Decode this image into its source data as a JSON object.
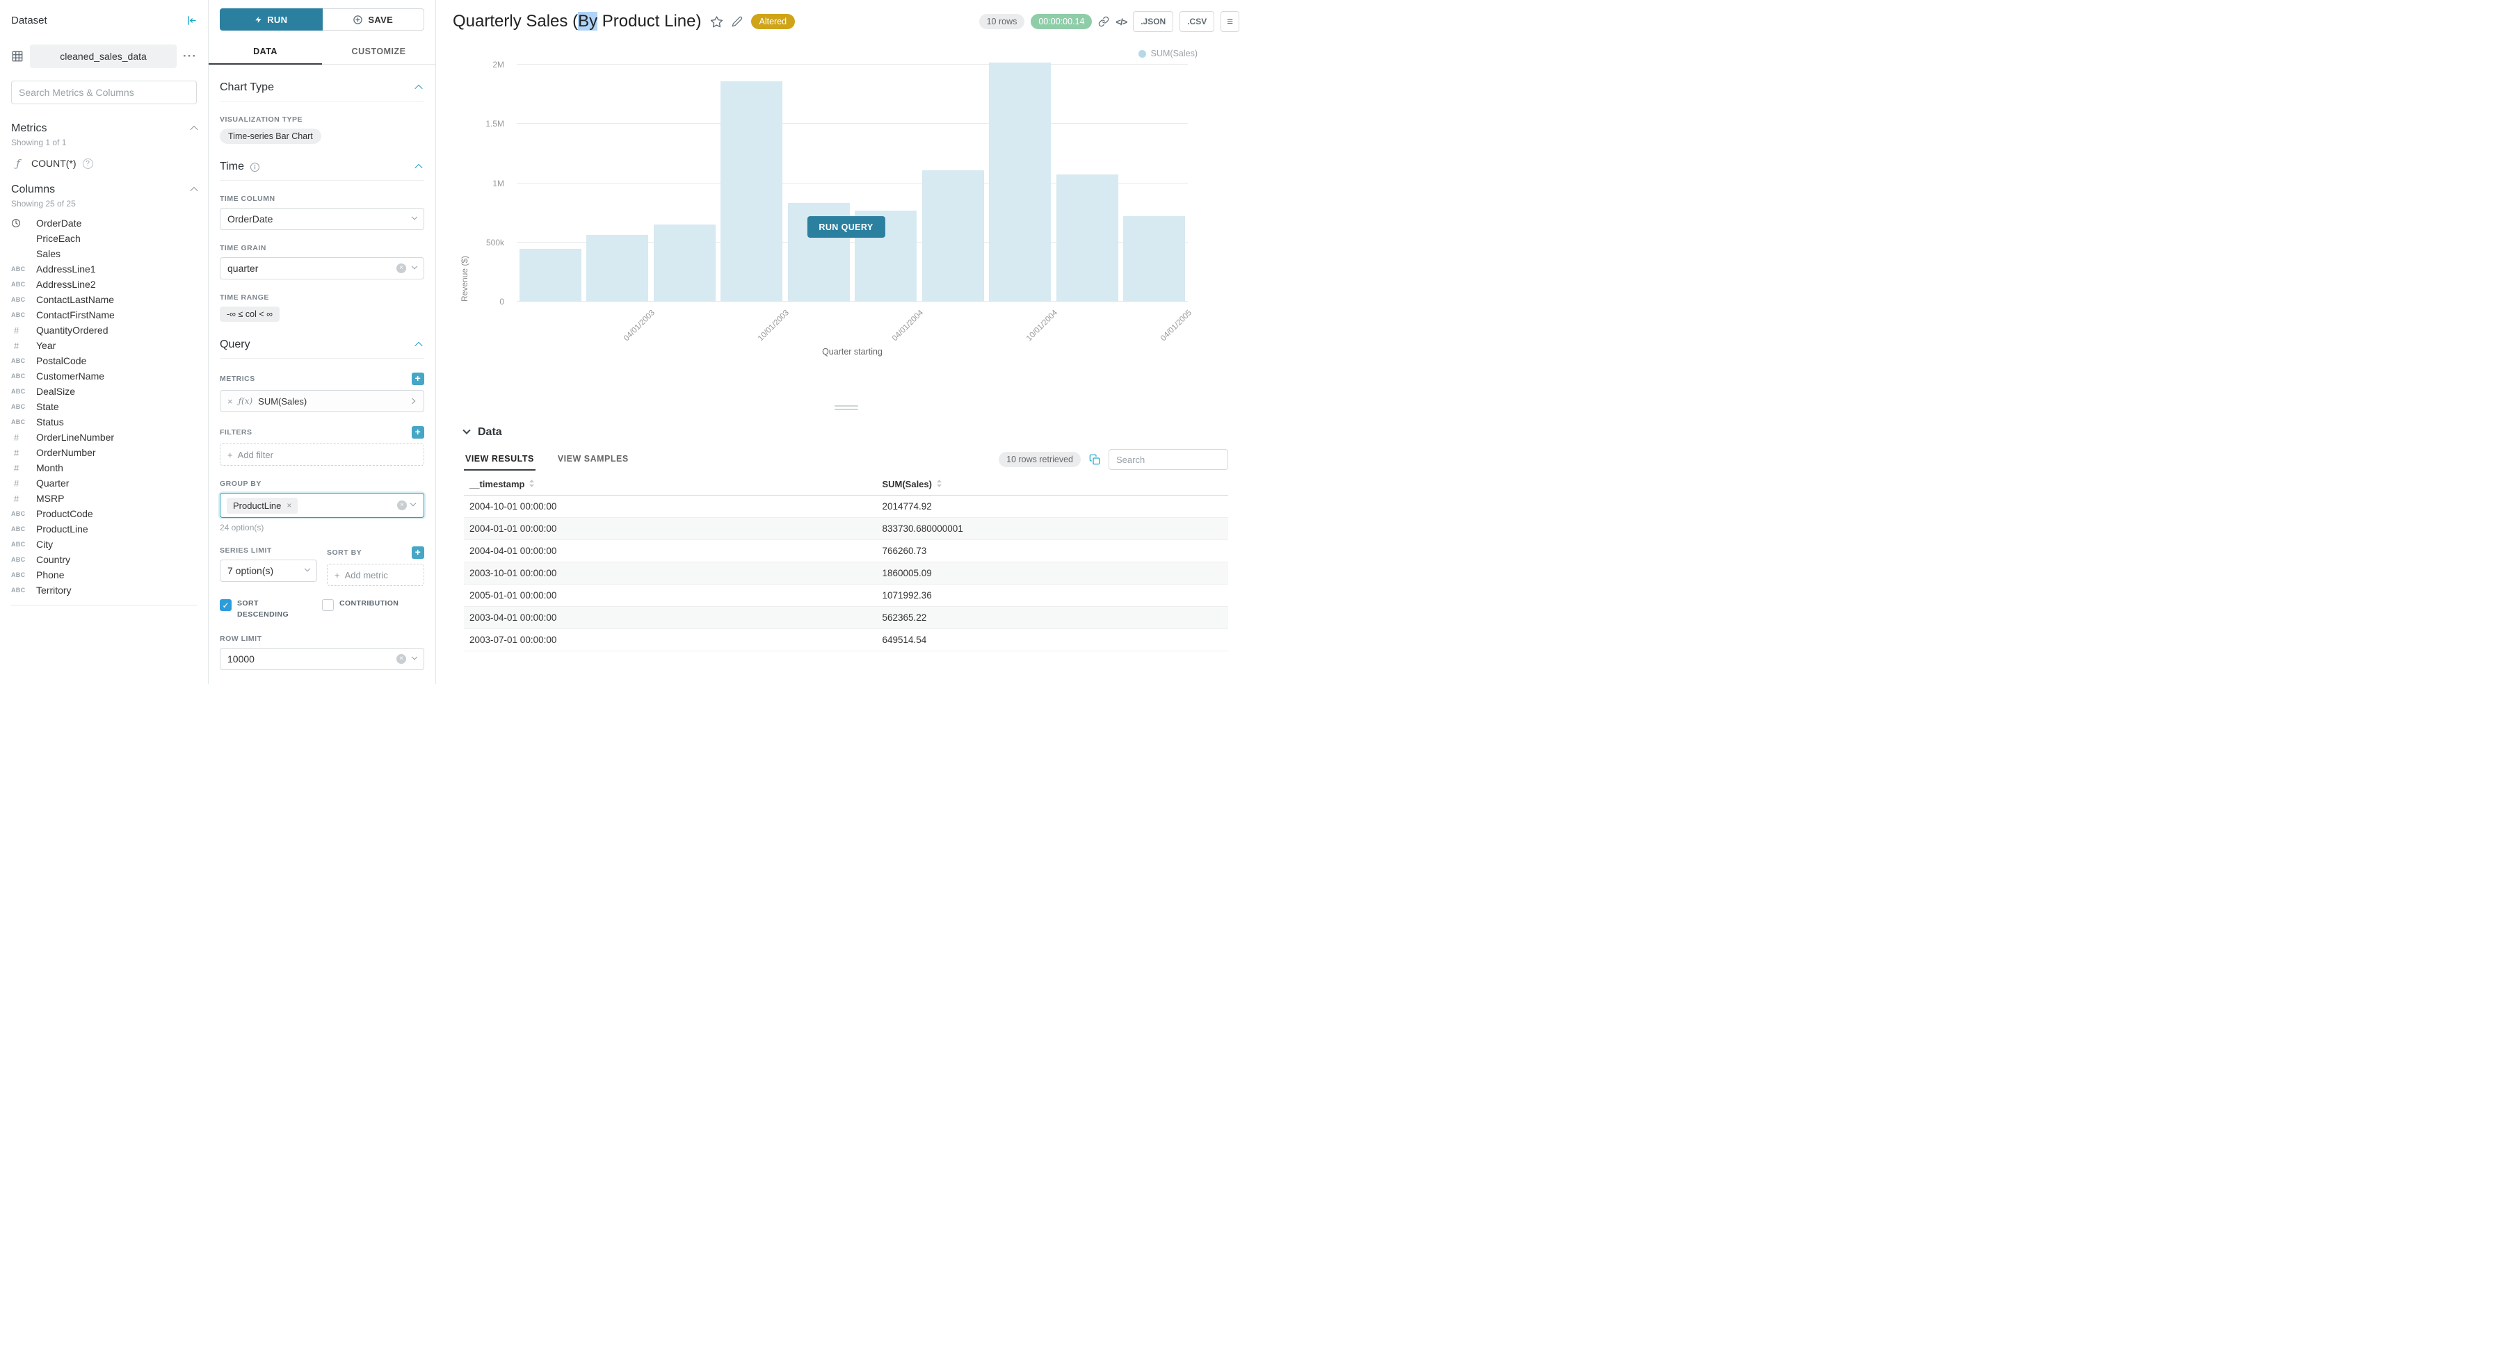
{
  "icons": {
    "more": "···",
    "menu": "≡",
    "code": "</>",
    "question": "?",
    "check": "✓",
    "plus": "+",
    "close": "×",
    "function": "ƒ"
  },
  "colors": {
    "accent": "#2b80a0",
    "teal": "#20a7c9",
    "altered_badge": "#cfa418",
    "timer_badge": "#8fcda9",
    "selection_highlight": "#b0d3f7",
    "checkbox_checked": "#2d9cdb"
  },
  "dataset_panel": {
    "title": "Dataset",
    "dataset_name": "cleaned_sales_data",
    "search_placeholder": "Search Metrics & Columns",
    "metrics_section": {
      "title": "Metrics",
      "showing": "Showing 1 of 1",
      "items": [
        {
          "label": "COUNT(*)"
        }
      ]
    },
    "columns_section": {
      "title": "Columns",
      "showing": "Showing 25 of 25",
      "items": [
        {
          "type": "time",
          "label": "OrderDate"
        },
        {
          "type": "none",
          "label": "PriceEach"
        },
        {
          "type": "none",
          "label": "Sales"
        },
        {
          "type": "text",
          "label": "AddressLine1"
        },
        {
          "type": "text",
          "label": "AddressLine2"
        },
        {
          "type": "text",
          "label": "ContactLastName"
        },
        {
          "type": "text",
          "label": "ContactFirstName"
        },
        {
          "type": "num",
          "label": "QuantityOrdered"
        },
        {
          "type": "num",
          "label": "Year"
        },
        {
          "type": "text",
          "label": "PostalCode"
        },
        {
          "type": "text",
          "label": "CustomerName"
        },
        {
          "type": "text",
          "label": "DealSize"
        },
        {
          "type": "text",
          "label": "State"
        },
        {
          "type": "text",
          "label": "Status"
        },
        {
          "type": "num",
          "label": "OrderLineNumber"
        },
        {
          "type": "num",
          "label": "OrderNumber"
        },
        {
          "type": "num",
          "label": "Month"
        },
        {
          "type": "num",
          "label": "Quarter"
        },
        {
          "type": "num",
          "label": "MSRP"
        },
        {
          "type": "text",
          "label": "ProductCode"
        },
        {
          "type": "text",
          "label": "ProductLine"
        },
        {
          "type": "text",
          "label": "City"
        },
        {
          "type": "text",
          "label": "Country"
        },
        {
          "type": "text",
          "label": "Phone"
        },
        {
          "type": "text",
          "label": "Territory"
        }
      ]
    }
  },
  "control_panel": {
    "run_label": "RUN",
    "save_label": "SAVE",
    "tabs": [
      {
        "label": "DATA"
      },
      {
        "label": "CUSTOMIZE"
      }
    ],
    "chart_type_section": {
      "title": "Chart Type",
      "viz_type_label": "VISUALIZATION TYPE",
      "viz_type_value": "Time-series Bar Chart"
    },
    "time_section": {
      "title": "Time",
      "time_column_label": "TIME COLUMN",
      "time_column_value": "OrderDate",
      "time_grain_label": "TIME GRAIN",
      "time_grain_value": "quarter",
      "time_range_label": "TIME RANGE",
      "time_range_value": "-∞ ≤ col < ∞"
    },
    "query_section": {
      "title": "Query",
      "metrics_label": "METRICS",
      "metric_fx": "ƒ(x)",
      "metric_value": "SUM(Sales)",
      "filters_label": "FILTERS",
      "add_filter_label": "Add filter",
      "group_by_label": "GROUP BY",
      "group_by_tag": "ProductLine",
      "group_by_options_note": "24 option(s)",
      "series_limit_label": "SERIES LIMIT",
      "series_limit_value": "7 option(s)",
      "sort_by_label": "SORT BY",
      "add_metric_label": "Add metric",
      "sort_descending_label": "SORT DESCENDING",
      "contribution_label": "CONTRIBUTION",
      "row_limit_label": "ROW LIMIT",
      "row_limit_value": "10000"
    }
  },
  "header": {
    "title_prefix": "Quarterly Sales (",
    "title_highlight": "By",
    "title_suffix": " Product Line)",
    "altered_badge": "Altered",
    "rows_badge": "10 rows",
    "timer": "00:00:00.14",
    "json_button": ".JSON",
    "csv_button": ".CSV"
  },
  "chart": {
    "run_query_label": "RUN QUERY"
  },
  "chart_data": {
    "type": "bar",
    "title": "Quarterly Sales (By Product Line)",
    "xlabel": "Quarter starting",
    "ylabel": "Revenue ($)",
    "x": [
      "2003-01-01",
      "2003-04-01",
      "2003-07-01",
      "2003-10-01",
      "2004-01-01",
      "2004-04-01",
      "2004-07-01",
      "2004-10-01",
      "2005-01-01",
      "2005-04-01"
    ],
    "series": [
      {
        "name": "SUM(Sales)",
        "values": [
          445000,
          562365.22,
          649514.54,
          1860005.09,
          833730.68,
          766260.73,
          1109000,
          2014774.92,
          1071992.36,
          719500
        ]
      }
    ],
    "x_tick_labels": [
      "04/01/2003",
      "10/01/2003",
      "04/01/2004",
      "10/01/2004",
      "04/01/2005"
    ],
    "y_ticks": [
      "0",
      "500k",
      "1M",
      "1.5M",
      "2M"
    ],
    "ylim": [
      0,
      2000000
    ],
    "grid": true,
    "legend": [
      "SUM(Sales)"
    ],
    "legend_position": "top-right",
    "bar_color": "#d7e9f1",
    "stale": true
  },
  "data_panel": {
    "title": "Data",
    "tabs": [
      {
        "label": "VIEW RESULTS"
      },
      {
        "label": "VIEW SAMPLES"
      }
    ],
    "rows_retrieved_badge": "10 rows retrieved",
    "search_placeholder": "Search",
    "table": {
      "columns": [
        "__timestamp",
        "SUM(Sales)"
      ],
      "rows": [
        [
          "2004-10-01 00:00:00",
          "2014774.92"
        ],
        [
          "2004-01-01 00:00:00",
          "833730.680000001"
        ],
        [
          "2004-04-01 00:00:00",
          "766260.73"
        ],
        [
          "2003-10-01 00:00:00",
          "1860005.09"
        ],
        [
          "2005-01-01 00:00:00",
          "1071992.36"
        ],
        [
          "2003-04-01 00:00:00",
          "562365.22"
        ],
        [
          "2003-07-01 00:00:00",
          "649514.54"
        ]
      ]
    }
  }
}
